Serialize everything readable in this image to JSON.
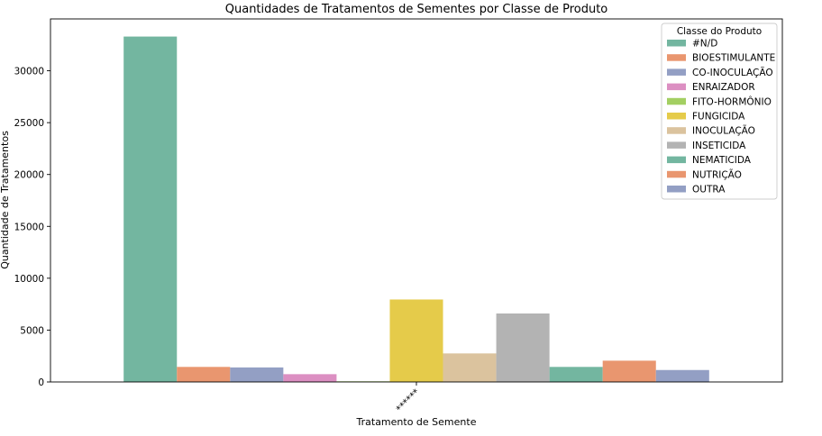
{
  "chart_data": {
    "type": "bar",
    "title": "Quantidades de Tratamentos de Sementes por Classe de Produto",
    "xlabel": "Tratamento de Semente",
    "ylabel": "Quantidade de Tratamentos",
    "categories": [
      "******"
    ],
    "ylim": [
      0,
      35000
    ],
    "yticks": [
      0,
      5000,
      10000,
      15000,
      20000,
      25000,
      30000
    ],
    "grid": false,
    "legend": {
      "title": "Classe do Produto",
      "placement": "top-right"
    },
    "series": [
      {
        "name": "#N/D",
        "values": [
          33300
        ],
        "color": "#73b6a0"
      },
      {
        "name": "BIOESTIMULANTE",
        "values": [
          1450
        ],
        "color": "#e9966f"
      },
      {
        "name": "CO-INOCULAÇÃO",
        "values": [
          1400
        ],
        "color": "#939fc4"
      },
      {
        "name": "ENRAIZADOR",
        "values": [
          750
        ],
        "color": "#dc8fc2"
      },
      {
        "name": "FITO-HORMÔNIO",
        "values": [
          60
        ],
        "color": "#a3cf62"
      },
      {
        "name": "FUNGICIDA",
        "values": [
          7950
        ],
        "color": "#e5cb4a"
      },
      {
        "name": "INOCULAÇÃO",
        "values": [
          2750
        ],
        "color": "#dbc39e"
      },
      {
        "name": "INSETICIDA",
        "values": [
          6600
        ],
        "color": "#b3b3b3"
      },
      {
        "name": "NEMATICIDA",
        "values": [
          1450
        ],
        "color": "#73b6a0"
      },
      {
        "name": "NUTRIÇÃO",
        "values": [
          2050
        ],
        "color": "#e9966f"
      },
      {
        "name": "OUTRA",
        "values": [
          1150
        ],
        "color": "#939fc4"
      }
    ]
  }
}
